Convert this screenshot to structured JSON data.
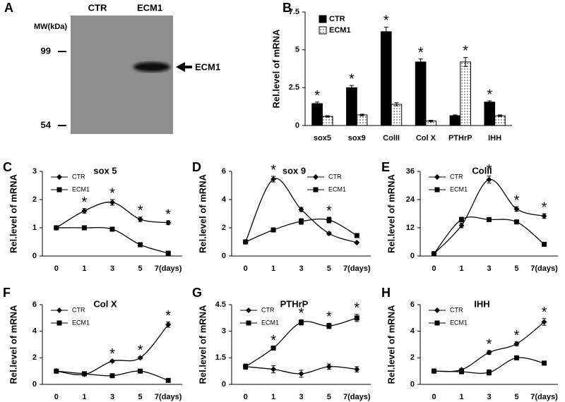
{
  "blot": {
    "label": "A",
    "lanes": [
      "CTR",
      "ECM1"
    ],
    "mw_title": "MW(kDa)",
    "markers": [
      99,
      54
    ],
    "band_label": "ECM1"
  },
  "chart_data": [
    {
      "type": "bar",
      "label": "B",
      "ylabel": "Rel.level of mRNA",
      "categories": [
        "sox5",
        "sox9",
        "ColII",
        "Col X",
        "PTHrP",
        "IHH"
      ],
      "series": [
        {
          "name": "CTR",
          "color": "#000000",
          "values": [
            1.45,
            2.5,
            6.2,
            4.2,
            0.65,
            1.55
          ],
          "errors": [
            0.1,
            0.15,
            0.3,
            0.2,
            0.05,
            0.08
          ]
        },
        {
          "name": "ECM1",
          "color": "#ffffff",
          "pattern": "dots",
          "values": [
            0.6,
            0.7,
            1.4,
            0.3,
            4.2,
            0.65
          ],
          "errors": [
            0.05,
            0.05,
            0.1,
            0.05,
            0.3,
            0.05
          ]
        }
      ],
      "significance": [
        "*",
        "*",
        "*",
        "*",
        "*",
        "*"
      ],
      "ylim": [
        0,
        7.5
      ],
      "yticks": [
        0,
        2.5,
        5,
        7.5
      ],
      "legend": "upper left"
    },
    {
      "type": "line",
      "label": "C",
      "title": "sox 5",
      "ylabel": "Rel.level of mRNA",
      "categories": [
        "0",
        "1",
        "3",
        "5",
        "7(days)"
      ],
      "series": [
        {
          "name": "CTR",
          "color": "#000000",
          "marker": "diamond",
          "values": [
            1,
            1.6,
            1.9,
            1.3,
            1.18
          ],
          "errors": [
            0.05,
            0.08,
            0.1,
            0.08,
            0.07
          ]
        },
        {
          "name": "ECM1",
          "color": "#000000",
          "marker": "square",
          "values": [
            1,
            1,
            0.95,
            0.4,
            0.1
          ],
          "errors": [
            0.03,
            0.05,
            0.05,
            0.04,
            0.02
          ]
        }
      ],
      "significance": [
        null,
        "*",
        "*",
        "*",
        "*"
      ],
      "ylim": [
        0,
        3
      ],
      "yticks": [
        0,
        1,
        2,
        3
      ],
      "legend": "upper left",
      "smooth": true
    },
    {
      "type": "line",
      "label": "D",
      "title": "sox 9",
      "ylabel": "Rel.level of mRNA",
      "categories": [
        "0",
        "1",
        "3",
        "5",
        "7(days)"
      ],
      "series": [
        {
          "name": "CTR",
          "color": "#000000",
          "marker": "diamond",
          "values": [
            1,
            5.45,
            3.3,
            1.6,
            0.95
          ],
          "errors": [
            0.05,
            0.2,
            0.15,
            0.1,
            0.05
          ]
        },
        {
          "name": "ECM1",
          "color": "#000000",
          "marker": "square",
          "values": [
            1,
            1.85,
            2.45,
            2.55,
            1.45
          ],
          "errors": [
            0.05,
            0.1,
            0.2,
            0.2,
            0.1
          ]
        }
      ],
      "significance": [
        null,
        "*",
        null,
        "*",
        null
      ],
      "ylim": [
        0,
        6
      ],
      "yticks": [
        0,
        2,
        4,
        6
      ],
      "legend": "upper right",
      "smooth": true
    },
    {
      "type": "line",
      "label": "E",
      "title": "ColII",
      "ylabel": "Rel.level of mRNA",
      "categories": [
        "0",
        "1",
        "3",
        "5",
        "7(days)"
      ],
      "series": [
        {
          "name": "CTR",
          "color": "#000000",
          "marker": "diamond",
          "values": [
            1,
            13,
            32.5,
            20,
            17
          ],
          "errors": [
            0.2,
            1,
            1.5,
            1,
            1
          ]
        },
        {
          "name": "ECM1",
          "color": "#000000",
          "marker": "square",
          "values": [
            1,
            15.5,
            15.5,
            14.5,
            5
          ],
          "errors": [
            0.2,
            1,
            0.8,
            0.6,
            0.3
          ]
        }
      ],
      "significance": [
        null,
        null,
        "*",
        "*",
        "*"
      ],
      "ylim": [
        0,
        36
      ],
      "yticks": [
        0,
        12,
        24,
        36
      ],
      "legend": "upper left",
      "smooth": true
    },
    {
      "type": "line",
      "label": "F",
      "title": "Col X",
      "ylabel": "Rel.level of mRNA",
      "categories": [
        "0",
        "1",
        "3",
        "5",
        "7(days)"
      ],
      "series": [
        {
          "name": "CTR",
          "color": "#000000",
          "marker": "diamond",
          "values": [
            1,
            0.75,
            1.75,
            2,
            4.5
          ],
          "errors": [
            0.05,
            0.05,
            0.08,
            0.08,
            0.2
          ]
        },
        {
          "name": "ECM1",
          "color": "#000000",
          "marker": "square",
          "values": [
            1,
            0.8,
            0.65,
            1,
            0.3
          ],
          "errors": [
            0.05,
            0.05,
            0.05,
            0.05,
            0.03
          ]
        }
      ],
      "significance": [
        null,
        null,
        "*",
        "*",
        "*"
      ],
      "ylim": [
        0,
        6
      ],
      "yticks": [
        0,
        2,
        4,
        6
      ],
      "legend": "upper left",
      "smooth": true
    },
    {
      "type": "line",
      "label": "G",
      "title": "PTHrP",
      "ylabel": "Rel.level of mRNA",
      "categories": [
        "0",
        "1",
        "3",
        "5",
        "7(days)"
      ],
      "series": [
        {
          "name": "CTR",
          "color": "#000000",
          "marker": "diamond",
          "values": [
            1,
            0.85,
            0.6,
            1,
            0.85
          ],
          "errors": [
            0.15,
            0.2,
            0.2,
            0.15,
            0.15
          ]
        },
        {
          "name": "ECM1",
          "color": "#000000",
          "marker": "square",
          "values": [
            1,
            2.05,
            3.5,
            3.3,
            3.75
          ],
          "errors": [
            0.1,
            0.08,
            0.15,
            0.15,
            0.2
          ]
        }
      ],
      "significance": [
        null,
        "*",
        "*",
        "*",
        "*"
      ],
      "ylim": [
        0,
        4.5
      ],
      "yticks": [
        0,
        1.5,
        3,
        4.5
      ],
      "legend": "upper left",
      "smooth": true
    },
    {
      "type": "line",
      "label": "H",
      "title": "IHH",
      "ylabel": "Rel.level of mRNA",
      "categories": [
        "0",
        "1",
        "3",
        "5",
        "7(days)"
      ],
      "series": [
        {
          "name": "CTR",
          "color": "#000000",
          "marker": "diamond",
          "values": [
            1,
            1.1,
            2.4,
            3.05,
            4.7
          ],
          "errors": [
            0.1,
            0.1,
            0.15,
            0.15,
            0.25
          ]
        },
        {
          "name": "ECM1",
          "color": "#000000",
          "marker": "square",
          "values": [
            1,
            0.95,
            0.9,
            2,
            1.6
          ],
          "errors": [
            0.15,
            0.15,
            0.2,
            0.15,
            0.15
          ]
        }
      ],
      "significance": [
        null,
        null,
        "*",
        "*",
        "*"
      ],
      "ylim": [
        0,
        6
      ],
      "yticks": [
        0,
        2,
        4,
        6
      ],
      "legend": "upper left",
      "smooth": true
    }
  ]
}
